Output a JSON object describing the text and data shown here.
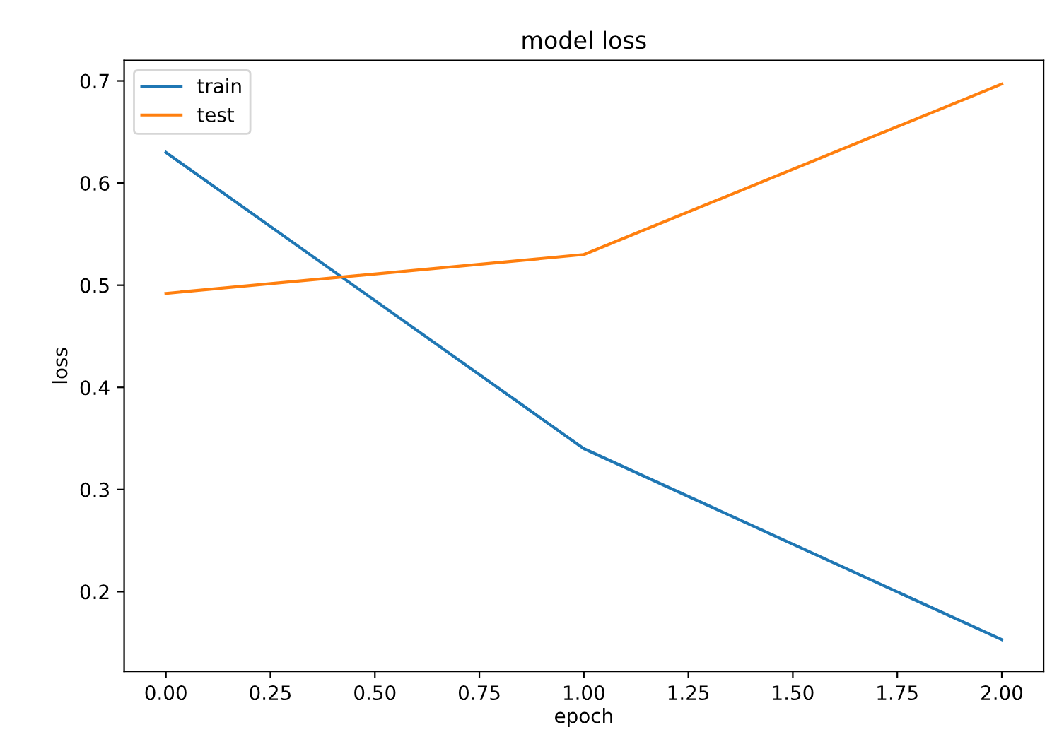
{
  "chart_data": {
    "type": "line",
    "title": "model loss",
    "xlabel": "epoch",
    "ylabel": "loss",
    "x": [
      0,
      1,
      2
    ],
    "series": [
      {
        "name": "train",
        "color": "#1f77b4",
        "values": [
          0.63,
          0.34,
          0.153
        ]
      },
      {
        "name": "test",
        "color": "#ff7f0e",
        "values": [
          0.492,
          0.53,
          0.697
        ]
      }
    ],
    "xlim": [
      -0.1,
      2.1
    ],
    "ylim": [
      0.122,
      0.72
    ],
    "xticks": [
      {
        "value": 0,
        "label": "0.00"
      },
      0.25,
      {
        "value": 0.5,
        "label": "0.50"
      },
      0.75,
      {
        "value": 1,
        "label": "1.00"
      },
      1.25,
      {
        "value": 1.5,
        "label": "1.50"
      },
      1.75,
      {
        "value": 2,
        "label": "2.00"
      }
    ],
    "yticks": [
      0.2,
      0.3,
      0.4,
      0.5,
      0.6,
      0.7
    ],
    "legend": "top left",
    "grid": false
  }
}
